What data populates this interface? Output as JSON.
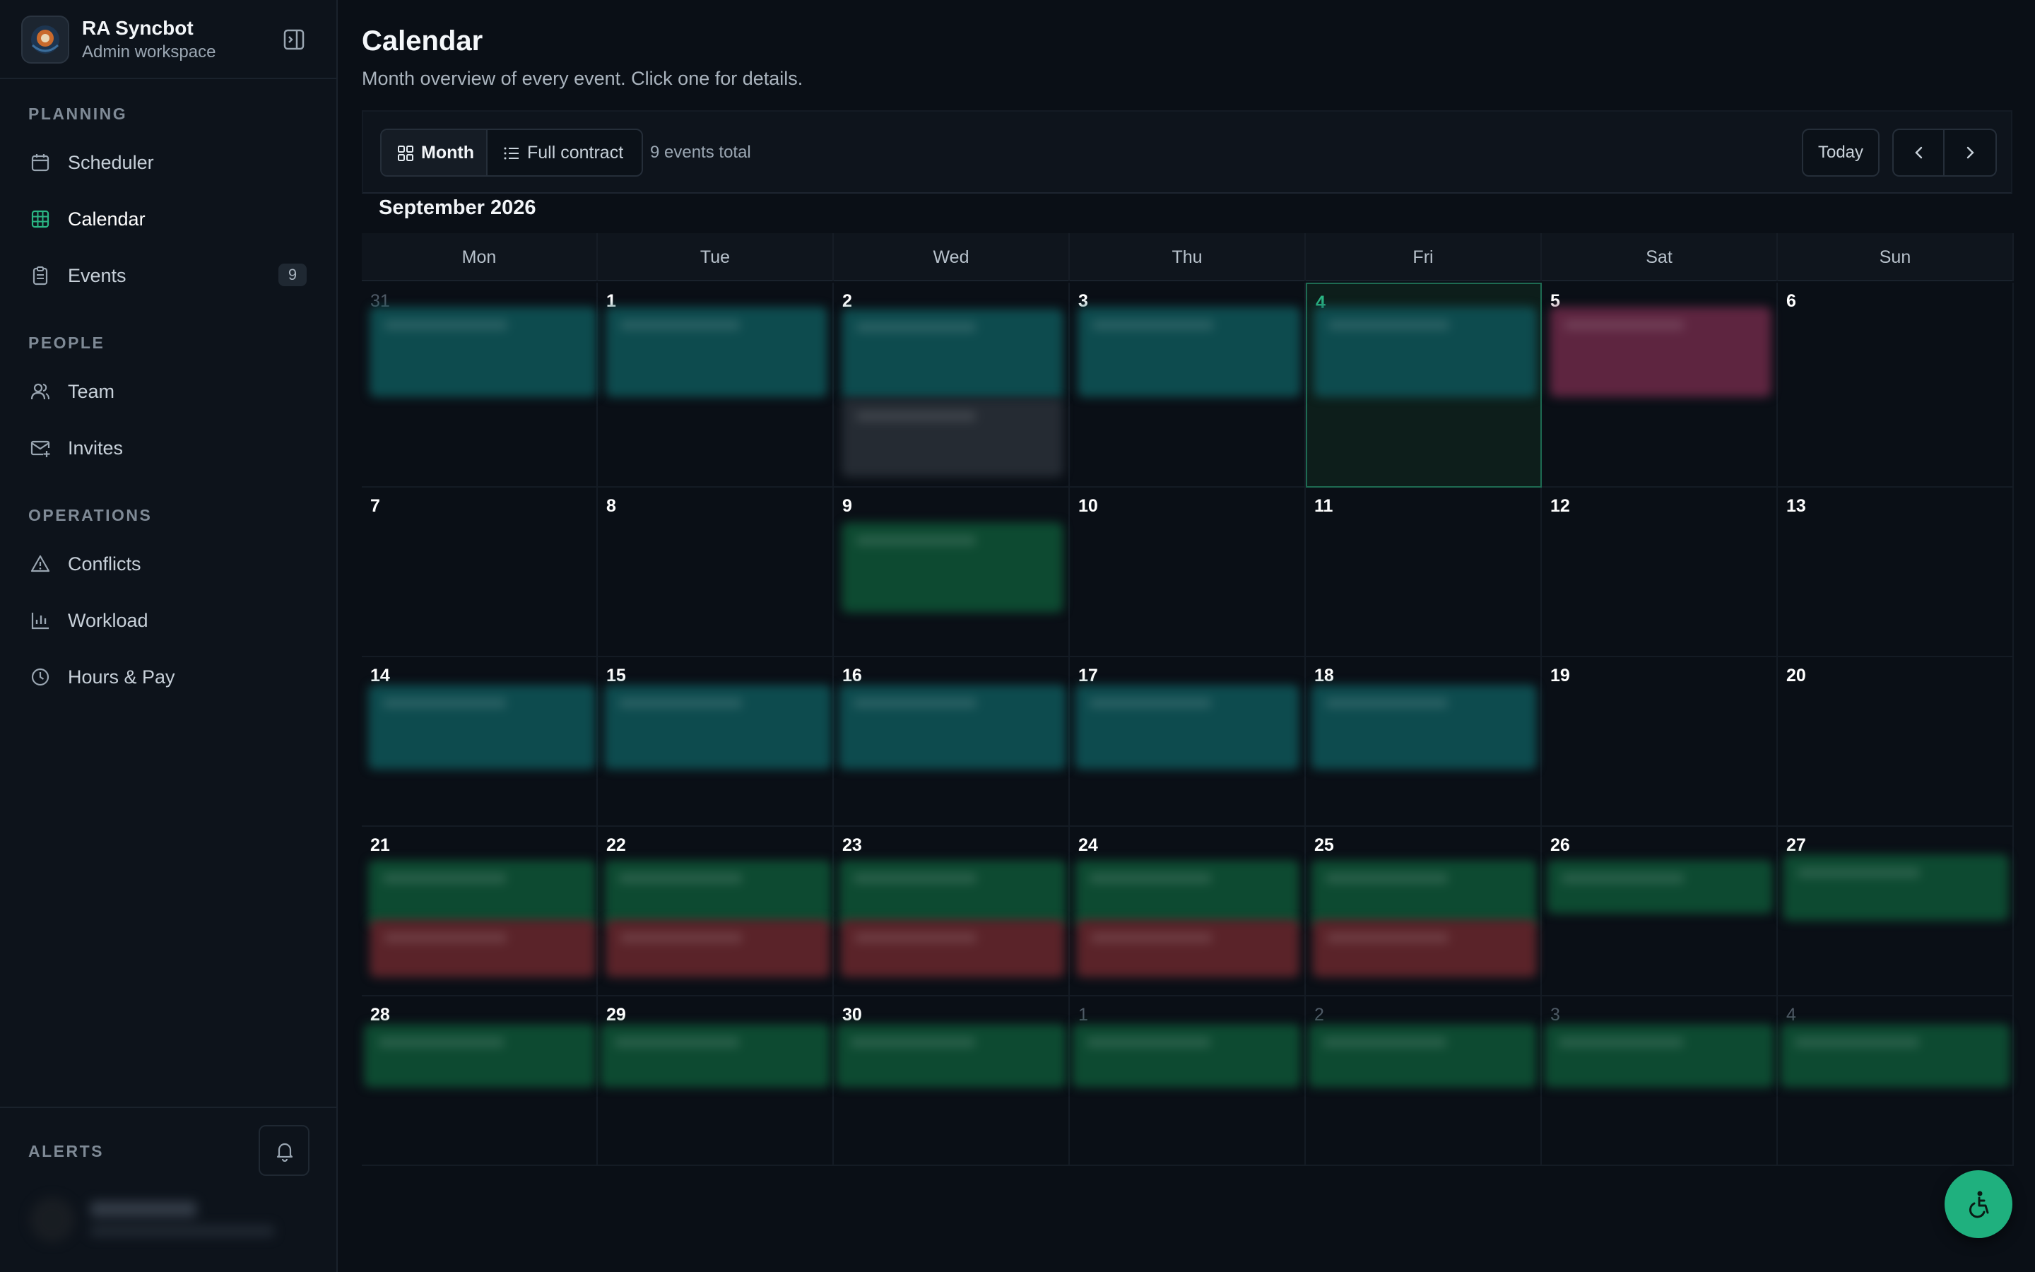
{
  "brand": {
    "name": "RA Syncbot",
    "subtitle": "Admin workspace"
  },
  "sidebar": {
    "sections": [
      {
        "title": "PLANNING",
        "items": [
          {
            "label": "Scheduler",
            "icon": "calendar-icon"
          },
          {
            "label": "Calendar",
            "icon": "grid-icon",
            "active": true
          },
          {
            "label": "Events",
            "icon": "clipboard-icon",
            "badge": "9"
          }
        ]
      },
      {
        "title": "PEOPLE",
        "items": [
          {
            "label": "Team",
            "icon": "users-icon"
          },
          {
            "label": "Invites",
            "icon": "mail-plus-icon"
          }
        ]
      },
      {
        "title": "OPERATIONS",
        "items": [
          {
            "label": "Conflicts",
            "icon": "warning-icon"
          },
          {
            "label": "Workload",
            "icon": "bar-chart-icon"
          },
          {
            "label": "Hours & Pay",
            "icon": "clock-icon"
          }
        ]
      }
    ],
    "alerts_title": "ALERTS"
  },
  "page": {
    "title": "Calendar",
    "subtitle": "Month overview of every event. Click one for details."
  },
  "toolbar": {
    "view_month": "Month",
    "view_full": "Full contract",
    "events_total": "9 events total",
    "today": "Today"
  },
  "calendar": {
    "month_label": "September 2026",
    "weekdays": [
      "Mon",
      "Tue",
      "Wed",
      "Thu",
      "Fri",
      "Sat",
      "Sun"
    ],
    "weeks": [
      [
        "31",
        "1",
        "2",
        "3",
        "4",
        "5",
        "6"
      ],
      [
        "7",
        "8",
        "9",
        "10",
        "11",
        "12",
        "13"
      ],
      [
        "14",
        "15",
        "16",
        "17",
        "18",
        "19",
        "20"
      ],
      [
        "21",
        "22",
        "23",
        "24",
        "25",
        "26",
        "27"
      ],
      [
        "28",
        "29",
        "30",
        "1",
        "2",
        "3",
        "4"
      ]
    ],
    "today": "4"
  },
  "colors": {
    "accent": "#1fb07e",
    "event_teal": "#0d4b4e",
    "event_green": "#0d4a31",
    "event_red": "#5a2329",
    "event_pink": "#5e2540"
  }
}
